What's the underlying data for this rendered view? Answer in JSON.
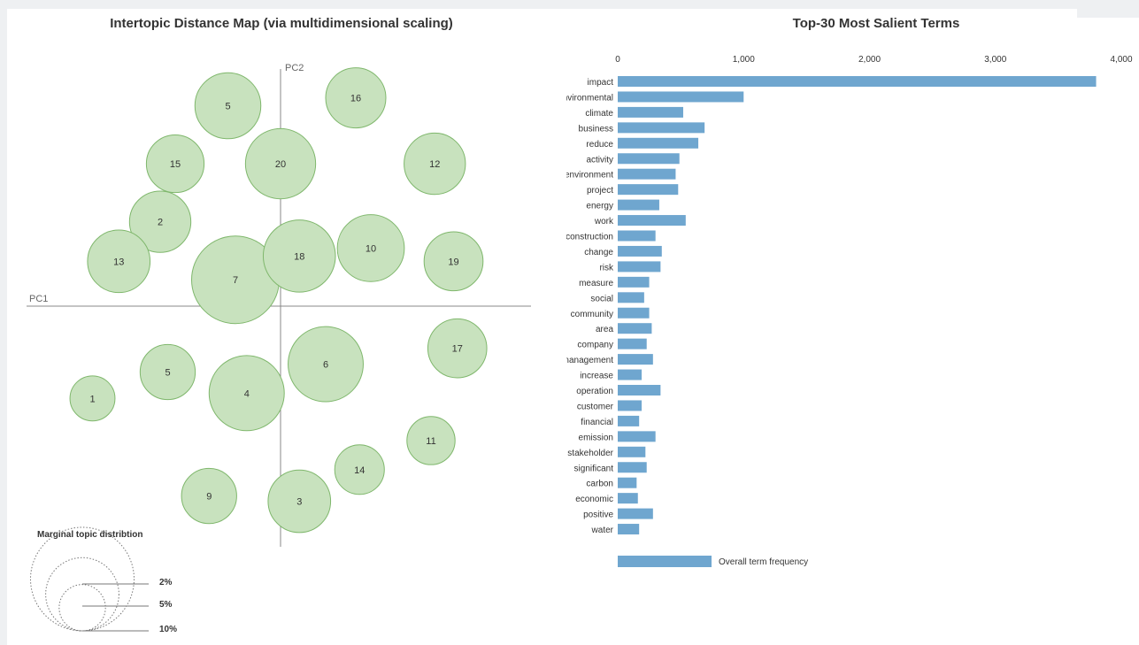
{
  "chart_data": [
    {
      "type": "scatter",
      "title": "Intertopic Distance Map (via multidimensional scaling)",
      "xlabel": "PC1",
      "ylabel": "PC2",
      "topics": [
        {
          "label": "5",
          "pc1": -0.14,
          "pc2": 0.76,
          "size": 3.0
        },
        {
          "label": "16",
          "pc1": 0.2,
          "pc2": 0.79,
          "size": 2.5
        },
        {
          "label": "15",
          "pc1": -0.28,
          "pc2": 0.54,
          "size": 2.3
        },
        {
          "label": "20",
          "pc1": 0.0,
          "pc2": 0.54,
          "size": 3.4
        },
        {
          "label": "12",
          "pc1": 0.41,
          "pc2": 0.54,
          "size": 2.6
        },
        {
          "label": "2",
          "pc1": -0.32,
          "pc2": 0.32,
          "size": 2.6
        },
        {
          "label": "13",
          "pc1": -0.43,
          "pc2": 0.17,
          "size": 2.7
        },
        {
          "label": "7",
          "pc1": -0.12,
          "pc2": 0.1,
          "size": 5.3
        },
        {
          "label": "18",
          "pc1": 0.05,
          "pc2": 0.19,
          "size": 3.6
        },
        {
          "label": "10",
          "pc1": 0.24,
          "pc2": 0.22,
          "size": 3.1
        },
        {
          "label": "19",
          "pc1": 0.46,
          "pc2": 0.17,
          "size": 2.4
        },
        {
          "label": "6",
          "pc1": 0.12,
          "pc2": -0.22,
          "size": 3.9
        },
        {
          "label": "17",
          "pc1": 0.47,
          "pc2": -0.16,
          "size": 2.4
        },
        {
          "label": "5",
          "pc1": -0.3,
          "pc2": -0.25,
          "size": 2.1
        },
        {
          "label": "4",
          "pc1": -0.09,
          "pc2": -0.33,
          "size": 3.9
        },
        {
          "label": "1",
          "pc1": -0.5,
          "pc2": -0.35,
          "size": 1.4
        },
        {
          "label": "11",
          "pc1": 0.4,
          "pc2": -0.51,
          "size": 1.6
        },
        {
          "label": "14",
          "pc1": 0.21,
          "pc2": -0.62,
          "size": 1.7
        },
        {
          "label": "9",
          "pc1": -0.19,
          "pc2": -0.72,
          "size": 2.1
        },
        {
          "label": "3",
          "pc1": 0.05,
          "pc2": -0.74,
          "size": 2.7
        }
      ],
      "legend": {
        "title": "Marginal topic distribtion",
        "items": [
          {
            "label": "2%",
            "value": 2
          },
          {
            "label": "5%",
            "value": 5
          },
          {
            "label": "10%",
            "value": 10
          }
        ]
      },
      "colors": {
        "bubble_fill": "#c8e2be",
        "bubble_stroke": "#7fb76c",
        "axis": "#888888"
      }
    },
    {
      "type": "bar",
      "title": "Top-30 Most Salient Terms",
      "orientation": "horizontal",
      "xlim": [
        0,
        4000
      ],
      "xticks": [
        "0",
        "1,000",
        "2,000",
        "3,000",
        "4,000"
      ],
      "xtick_values": [
        0,
        1000,
        2000,
        3000,
        4000
      ],
      "categories": [
        "impact",
        "environmental",
        "climate",
        "business",
        "reduce",
        "activity",
        "environment",
        "project",
        "energy",
        "work",
        "construction",
        "change",
        "risk",
        "measure",
        "social",
        "community",
        "area",
        "company",
        "management",
        "increase",
        "operation",
        "customer",
        "financial",
        "emission",
        "stakeholder",
        "significant",
        "carbon",
        "economic",
        "positive",
        "water"
      ],
      "series": [
        {
          "name": "Overall term frequency",
          "values": [
            3800,
            1000,
            520,
            690,
            640,
            490,
            460,
            480,
            330,
            540,
            300,
            350,
            340,
            250,
            210,
            250,
            270,
            230,
            280,
            190,
            340,
            190,
            170,
            300,
            220,
            230,
            150,
            160,
            280,
            170
          ]
        }
      ],
      "colors": {
        "bar": "#6fa6cf"
      }
    }
  ]
}
